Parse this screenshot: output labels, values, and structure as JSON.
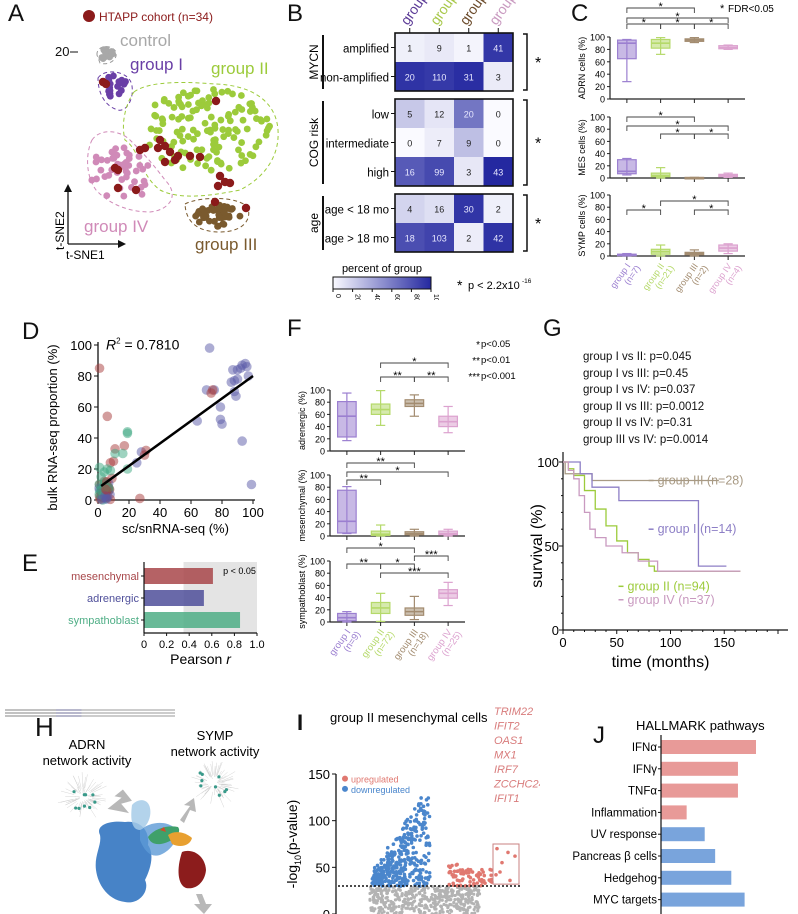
{
  "panels": {
    "A": {
      "label": "A",
      "legend": "HTAPP cohort (n=34)",
      "y_tick": "20",
      "x_axis": "t-SNE1",
      "y_axis": "t-SNE2",
      "groups": [
        {
          "name": "control",
          "color": "#a8a8a8"
        },
        {
          "name": "group I",
          "color": "#6a3fa6"
        },
        {
          "name": "group II",
          "color": "#9ccb3b"
        },
        {
          "name": "group III",
          "color": "#7a5a2e"
        },
        {
          "name": "group IV",
          "color": "#d08ab8"
        }
      ],
      "htapp_color": "#8b1a1a"
    },
    "B": {
      "label": "B",
      "columns": [
        {
          "name": "group",
          "color": "#5b3a96"
        },
        {
          "name": "group",
          "color": "#a8c84a"
        },
        {
          "name": "group",
          "color": "#6b4a2a"
        },
        {
          "name": "group",
          "color": "#c99ac0"
        }
      ],
      "sections": [
        {
          "title": "MYCN",
          "rows": [
            {
              "label": "amplified",
              "values": [
                1,
                9,
                1,
                41
              ],
              "pct": [
                5,
                8,
                3,
                93
              ]
            },
            {
              "label": "non-amplified",
              "values": [
                20,
                110,
                31,
                3
              ],
              "pct": [
                95,
                92,
                97,
                7
              ]
            }
          ]
        },
        {
          "title": "COG risk",
          "rows": [
            {
              "label": "low",
              "values": [
                5,
                12,
                20,
                0
              ],
              "pct": [
                24,
                10,
                63,
                0
              ]
            },
            {
              "label": "intermediate",
              "values": [
                0,
                7,
                9,
                0
              ],
              "pct": [
                0,
                6,
                28,
                0
              ]
            },
            {
              "label": "high",
              "values": [
                16,
                99,
                3,
                43
              ],
              "pct": [
                76,
                84,
                9,
                100
              ]
            }
          ]
        },
        {
          "title": "age",
          "rows": [
            {
              "label": "age < 18 mo",
              "values": [
                4,
                16,
                30,
                2
              ],
              "pct": [
                18,
                13,
                94,
                5
              ]
            },
            {
              "label": "age > 18 mo",
              "values": [
                18,
                103,
                2,
                42
              ],
              "pct": [
                82,
                87,
                6,
                95
              ]
            }
          ]
        }
      ],
      "colorbar_title": "percent of group",
      "colorbar_ticks": [
        "0",
        "20",
        "40",
        "60",
        "80",
        "100"
      ],
      "sig_star": "*",
      "sig_note": "p < 2.2x10",
      "sig_exp": "-16"
    },
    "C": {
      "label": "C",
      "legend": "FDR<0.05",
      "groups": [
        "group I",
        "group II",
        "group III",
        "group IV"
      ],
      "ns": [
        "(n=7)",
        "(n=21)",
        "(n=2)",
        "(n=4)"
      ],
      "colors": [
        "#9b7fd0",
        "#b5d96a",
        "#a38c70",
        "#dca2cf"
      ],
      "y_ticks": [
        "0",
        "20",
        "40",
        "60",
        "80",
        "100"
      ],
      "subplots": [
        {
          "ylabel": "ADRN cells (%)",
          "boxes": [
            [
              28,
              65,
              90,
              95,
              96
            ],
            [
              72,
              82,
              90,
              96,
              99
            ],
            [
              91,
              93,
              95,
              97,
              99
            ],
            [
              80,
              81,
              83,
              86,
              87
            ]
          ]
        },
        {
          "ylabel": "MES cells (%)",
          "boxes": [
            [
              5,
              7,
              11,
              30,
              32
            ],
            [
              0,
              2,
              4,
              8,
              17
            ],
            [
              0,
              0,
              0,
              1,
              1
            ],
            [
              1,
              2,
              4,
              6,
              8
            ]
          ]
        },
        {
          "ylabel": "SYMP cells (%)",
          "boxes": [
            [
              0,
              1,
              2,
              3,
              4
            ],
            [
              0,
              3,
              7,
              11,
              18
            ],
            [
              0,
              2,
              4,
              6,
              10
            ],
            [
              4,
              8,
              13,
              18,
              20
            ]
          ]
        }
      ]
    },
    "D": {
      "label": "D",
      "r2_label": "R",
      "r2_value": "= 0.7810",
      "xlabel": "sc/snRNA-seq (%)",
      "ylabel": "bulk RNA-seq proportion (%)",
      "x_ticks": [
        "0",
        "20",
        "40",
        "60",
        "80",
        "100"
      ],
      "y_ticks": [
        "0",
        "20",
        "40",
        "60",
        "80",
        "100"
      ]
    },
    "E": {
      "label": "E",
      "note": "p < 0.05",
      "xlabel": "Pearson ",
      "xlabel_italic": "r",
      "x_ticks": [
        "0",
        "0.2",
        "0.4",
        "0.6",
        "0.8",
        "1.0"
      ]
    },
    "F": {
      "label": "F",
      "legend": [
        {
          "stars": "*",
          "text": "p<0.05"
        },
        {
          "stars": "**",
          "text": "p<0.01"
        },
        {
          "stars": "***",
          "text": "p<0.001"
        }
      ],
      "groups": [
        "group I",
        "group II",
        "group III",
        "group IV"
      ],
      "ns": [
        "(n=9)",
        "(n=72)",
        "(n=18)",
        "(n=25)"
      ],
      "colors": [
        "#9b7fd0",
        "#b5d96a",
        "#a38c70",
        "#dca2cf"
      ],
      "y_ticks": [
        "0",
        "20",
        "40",
        "60",
        "80",
        "100"
      ],
      "subplots": [
        {
          "ylabel": "adrenergic (%)",
          "boxes": [
            [
              17,
              23,
              57,
              81,
              95
            ],
            [
              42,
              60,
              68,
              77,
              99
            ],
            [
              57,
              73,
              78,
              84,
              92
            ],
            [
              30,
              40,
              48,
              57,
              73
            ]
          ]
        },
        {
          "ylabel": "mesenchymal (%)",
          "boxes": [
            [
              4,
              5,
              24,
              75,
              81
            ],
            [
              0,
              1,
              3,
              8,
              18
            ],
            [
              0,
              2,
              4,
              7,
              11
            ],
            [
              0,
              2,
              4,
              8,
              11
            ]
          ]
        },
        {
          "ylabel": "sympathoblast (%)",
          "boxes": [
            [
              0,
              2,
              7,
              14,
              17
            ],
            [
              1,
              14,
              23,
              32,
              47
            ],
            [
              4,
              11,
              17,
              23,
              42
            ],
            [
              27,
              39,
              47,
              53,
              65
            ]
          ]
        }
      ]
    },
    "G": {
      "label": "G",
      "stats": [
        "group I vs II: p=0.045",
        "group I vs III: p=0.45",
        "group I vs IV: p=0.037",
        "group II vs III: p=0.0012",
        "group II vs IV: p=0.31",
        "group III vs IV: p=0.0014"
      ],
      "xlabel": "time (months)",
      "ylabel": "survival (%)",
      "x_ticks": [
        "0",
        "50",
        "100",
        "150"
      ],
      "y_ticks": [
        "0",
        "50",
        "100"
      ],
      "legend": [
        {
          "name": "group III (n=28)",
          "color": "#a89a84"
        },
        {
          "name": "group I (n=14)",
          "color": "#8d7fc6"
        },
        {
          "name": "group II (n=94)",
          "color": "#9ccb3b"
        },
        {
          "name": "group IV (n=37)",
          "color": "#c99ac0"
        }
      ]
    },
    "H": {
      "label": "H",
      "adrn_title_1": "ADRN",
      "adrn_title_2": "network activity",
      "symp_title_1": "SYMP",
      "symp_title_2": "network activity"
    },
    "I": {
      "label": "I",
      "title": "group II mesenchymal cells",
      "legend_up": "upregulated",
      "legend_down": "downregulated",
      "ylabel_prefix": "-log",
      "ylabel_sub": "10",
      "ylabel_suffix": "(p-value)",
      "y_ticks": [
        "0",
        "50",
        "100",
        "150"
      ],
      "genes": [
        "TRIM22",
        "IFIT2",
        "OAS1",
        "MX1",
        "IRF7",
        "ZCCHC24",
        "IFIT1"
      ],
      "up_color": "#e07870",
      "down_color": "#4a86cc"
    },
    "J": {
      "label": "J",
      "title": "HALLMARK pathways"
    }
  },
  "chart_data": [
    {
      "panel": "B",
      "type": "heatmap",
      "title": "",
      "columns": [
        "group I",
        "group II",
        "group III",
        "group IV"
      ],
      "rows": [
        "amplified",
        "non-amplified",
        "low",
        "intermediate",
        "high",
        "age < 18 mo",
        "age > 18 mo"
      ],
      "values": [
        [
          1,
          9,
          1,
          41
        ],
        [
          20,
          110,
          31,
          3
        ],
        [
          5,
          12,
          20,
          0
        ],
        [
          0,
          7,
          9,
          0
        ],
        [
          16,
          99,
          3,
          43
        ],
        [
          4,
          16,
          30,
          2
        ],
        [
          18,
          103,
          2,
          42
        ]
      ],
      "colorbar": {
        "title": "percent of group",
        "range": [
          0,
          100
        ]
      }
    },
    {
      "panel": "D",
      "type": "scatter",
      "xlabel": "sc/snRNA-seq (%)",
      "ylabel": "bulk RNA-seq proportion (%)",
      "xlim": [
        0,
        100
      ],
      "ylim": [
        0,
        100
      ],
      "annotation": "R^2 = 0.7810",
      "fit_line": [
        [
          0,
          7
        ],
        [
          100,
          80
        ]
      ],
      "series": [
        {
          "name": "adrenergic",
          "color": "#5a5aa8",
          "points": [
            [
              72,
              98
            ],
            [
              70,
              71
            ],
            [
              75,
              71
            ],
            [
              64,
              51
            ],
            [
              79,
              52
            ],
            [
              80,
              49
            ],
            [
              79,
              60
            ],
            [
              88,
              70
            ],
            [
              89,
              67
            ],
            [
              87,
              84
            ],
            [
              88,
              77
            ],
            [
              90,
              78
            ],
            [
              90,
              84
            ],
            [
              92,
              85
            ],
            [
              93,
              87
            ],
            [
              95,
              88
            ],
            [
              96,
              86
            ],
            [
              97,
              80
            ],
            [
              93,
              38
            ],
            [
              99,
              10
            ],
            [
              25,
              24
            ],
            [
              28,
              31
            ],
            [
              86,
              76
            ]
          ]
        },
        {
          "name": "mesenchymal",
          "color": "#a83c3c",
          "points": [
            [
              1,
              85
            ],
            [
              6,
              54
            ],
            [
              11,
              33
            ],
            [
              17,
              35
            ],
            [
              8,
              24
            ],
            [
              10,
              25
            ],
            [
              30,
              29
            ],
            [
              31,
              32
            ],
            [
              27,
              1
            ],
            [
              73,
              69
            ],
            [
              74,
              71
            ],
            [
              2,
              5
            ],
            [
              3,
              8
            ],
            [
              1,
              10
            ],
            [
              4,
              12
            ],
            [
              5,
              3
            ],
            [
              7,
              6
            ],
            [
              9,
              14
            ]
          ]
        },
        {
          "name": "sympathoblast",
          "color": "#3ea882",
          "points": [
            [
              19,
              44
            ],
            [
              19,
              43
            ],
            [
              16,
              30
            ],
            [
              19,
              20
            ],
            [
              11,
              30
            ],
            [
              1,
              21
            ],
            [
              2,
              15
            ],
            [
              4,
              18
            ],
            [
              6,
              20
            ],
            [
              8,
              19
            ],
            [
              2,
              2
            ],
            [
              3,
              0
            ],
            [
              5,
              1
            ],
            [
              1,
              6
            ]
          ]
        }
      ]
    },
    {
      "panel": "E",
      "type": "bar",
      "orientation": "horizontal",
      "categories": [
        "mesenchymal",
        "adrenergic",
        "sympathoblast"
      ],
      "values": [
        0.61,
        0.53,
        0.85
      ],
      "colors": [
        "#a8474a",
        "#4f4f9a",
        "#4fae86"
      ],
      "xlabel": "Pearson r",
      "xlim": [
        0,
        1.0
      ],
      "shaded_region": [
        0.35,
        1.0
      ],
      "annotation": "p < 0.05"
    },
    {
      "panel": "G",
      "type": "line",
      "subtype": "kaplan-meier",
      "xlabel": "time (months)",
      "ylabel": "survival (%)",
      "xlim": [
        0,
        200
      ],
      "ylim": [
        0,
        100
      ],
      "series": [
        {
          "name": "group III (n=28)",
          "color": "#a89a84",
          "x": [
            0,
            2,
            8,
            15,
            27,
            145
          ],
          "y": [
            100,
            93,
            93,
            93,
            89,
            89
          ]
        },
        {
          "name": "group I (n=14)",
          "color": "#8d7fc6",
          "x": [
            0,
            15,
            16,
            27,
            52,
            126,
            152
          ],
          "y": [
            100,
            100,
            93,
            85,
            77,
            38,
            38
          ]
        },
        {
          "name": "group II (n=94)",
          "color": "#9ccb3b",
          "x": [
            0,
            5,
            10,
            20,
            30,
            40,
            50,
            60,
            70,
            80,
            85,
            165
          ],
          "y": [
            100,
            96,
            92,
            83,
            72,
            62,
            53,
            46,
            42,
            38,
            35,
            35
          ]
        },
        {
          "name": "group IV (n=37)",
          "color": "#c99ac0",
          "x": [
            0,
            5,
            10,
            15,
            20,
            25,
            30,
            40,
            55,
            70,
            88,
            165
          ],
          "y": [
            100,
            95,
            90,
            80,
            70,
            60,
            55,
            50,
            46,
            41,
            35,
            35
          ]
        }
      ]
    },
    {
      "panel": "I",
      "type": "scatter",
      "subtype": "volcano",
      "title": "group II mesenchymal cells",
      "ylabel": "-log10(p-value)",
      "ylim": [
        0,
        150
      ],
      "threshold": 30,
      "series": [
        {
          "name": "upregulated",
          "color": "#e07870"
        },
        {
          "name": "downregulated",
          "color": "#4a86cc"
        }
      ],
      "annotated_genes": [
        "TRIM22",
        "IFIT2",
        "OAS1",
        "MX1",
        "IRF7",
        "ZCCHC24",
        "IFIT1"
      ]
    },
    {
      "panel": "J",
      "type": "bar",
      "orientation": "horizontal",
      "title": "HALLMARK pathways",
      "categories": [
        "IFNα",
        "IFNγ",
        "TNFα",
        "Inflammation",
        "UV response",
        "Pancreas β cells",
        "Hedgehog",
        "MYC targets"
      ],
      "values": [
        1.0,
        0.81,
        0.81,
        0.27,
        0.46,
        0.57,
        0.74,
        0.88
      ],
      "colors": [
        "#e89a98",
        "#e89a98",
        "#e89a98",
        "#e89a98",
        "#79a4dc",
        "#79a4dc",
        "#79a4dc",
        "#79a4dc"
      ],
      "xlabel": "",
      "note": "relative scale; no x-axis ticks shown"
    }
  ]
}
